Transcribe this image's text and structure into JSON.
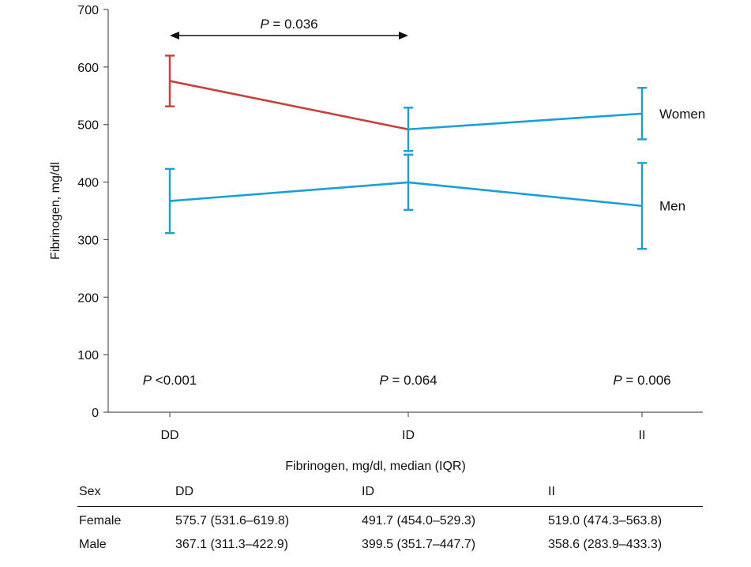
{
  "chart_data": {
    "type": "line",
    "ylabel": "Fibrinogen, mg/dl",
    "xlabel": "",
    "categories": [
      "DD",
      "ID",
      "II"
    ],
    "ylim": [
      0,
      700
    ],
    "yticks": [
      0,
      100,
      200,
      300,
      400,
      500,
      600,
      700
    ],
    "series": [
      {
        "name": "Women",
        "values": [
          575.7,
          491.7,
          519.0
        ],
        "lower": [
          531.6,
          454.0,
          474.3
        ],
        "upper": [
          619.8,
          529.3,
          563.8
        ],
        "color": "#1aa0d8",
        "highlight_color": "#c8403a"
      },
      {
        "name": "Men",
        "values": [
          367.1,
          399.5,
          358.6
        ],
        "lower": [
          311.3,
          351.7,
          283.9
        ],
        "upper": [
          422.9,
          447.7,
          433.3
        ],
        "color": "#1aa0d8"
      }
    ],
    "comparison": {
      "from": "DD",
      "to": "ID",
      "label_p": "P",
      "label_rest": " = 0.036"
    },
    "p_values": [
      {
        "category": "DD",
        "label_p": "P",
        "label_rest": " <0.001"
      },
      {
        "category": "ID",
        "label_p": "P",
        "label_rest": " = 0.064"
      },
      {
        "category": "II",
        "label_p": "P",
        "label_rest": " = 0.006"
      }
    ],
    "grid": false
  },
  "table": {
    "caption": "Fibrinogen, mg/dl, median (IQR)",
    "headers": [
      "Sex",
      "DD",
      "ID",
      "II"
    ],
    "rows": [
      [
        "Female",
        "575.7 (531.6–619.8)",
        "491.7 (454.0–529.3)",
        "519.0 (474.3–563.8)"
      ],
      [
        "Male",
        "367.1 (311.3–422.9)",
        "399.5 (351.7–447.7)",
        "358.6 (283.9–433.3)"
      ]
    ]
  }
}
